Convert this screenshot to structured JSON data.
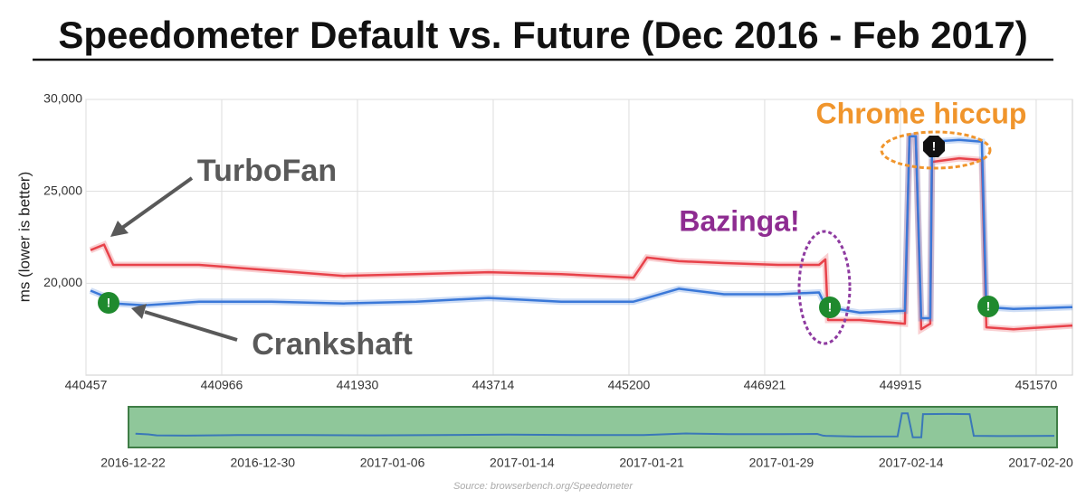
{
  "chart_data": {
    "type": "line",
    "title": "Speedometer Default vs. Future (Dec 2016 - Feb 2017)",
    "y_label": "ms (lower is better)",
    "x": [
      440474,
      440525,
      440559,
      440677,
      440881,
      441320,
      441834,
      442703,
      443654,
      444457,
      445257,
      445429,
      445831,
      446405,
      447220,
      448119,
      448259,
      448319,
      449017,
      449970,
      450026,
      450102,
      450168,
      450279,
      450301,
      450632,
      450908,
      450963,
      451294,
      452012
    ],
    "series": [
      {
        "name": "TurboFan",
        "color": "#e8424a",
        "values": [
          21800,
          22100,
          21000,
          21000,
          21000,
          20700,
          20400,
          20500,
          20600,
          20500,
          20300,
          21400,
          21200,
          21100,
          21000,
          21000,
          21300,
          18000,
          18000,
          17800,
          28000,
          28000,
          17500,
          17800,
          26600,
          26800,
          26700,
          17600,
          17500,
          17700
        ]
      },
      {
        "name": "Crankshaft",
        "color": "#3a78d8",
        "values": [
          19600,
          19300,
          18900,
          18800,
          19000,
          19000,
          18900,
          19000,
          19200,
          19000,
          19000,
          19200,
          19700,
          19400,
          19400,
          19500,
          18800,
          18700,
          18400,
          18500,
          28000,
          28000,
          18100,
          18100,
          27700,
          27800,
          27700,
          18700,
          18600,
          18700
        ]
      }
    ],
    "xlim": [
      440457,
      452012
    ],
    "xticks": [
      440457,
      440966,
      441930,
      443714,
      445200,
      446921,
      449915,
      451570
    ],
    "ylim": [
      15000,
      30000
    ],
    "yticks": [
      {
        "value": 20000,
        "label": "20,000"
      },
      {
        "value": 25000,
        "label": "25,000"
      },
      {
        "value": 30000,
        "label": "30,000"
      }
    ],
    "grid": true,
    "annotations": [
      "Chrome hiccup",
      "Bazinga!"
    ],
    "navigator_dates": [
      "2016-12-22",
      "2016-12-30",
      "2017-01-06",
      "2017-01-14",
      "2017-01-21",
      "2017-01-29",
      "2017-02-14",
      "2017-02-20"
    ],
    "source": "Source: browserbench.org/Speedometer"
  }
}
